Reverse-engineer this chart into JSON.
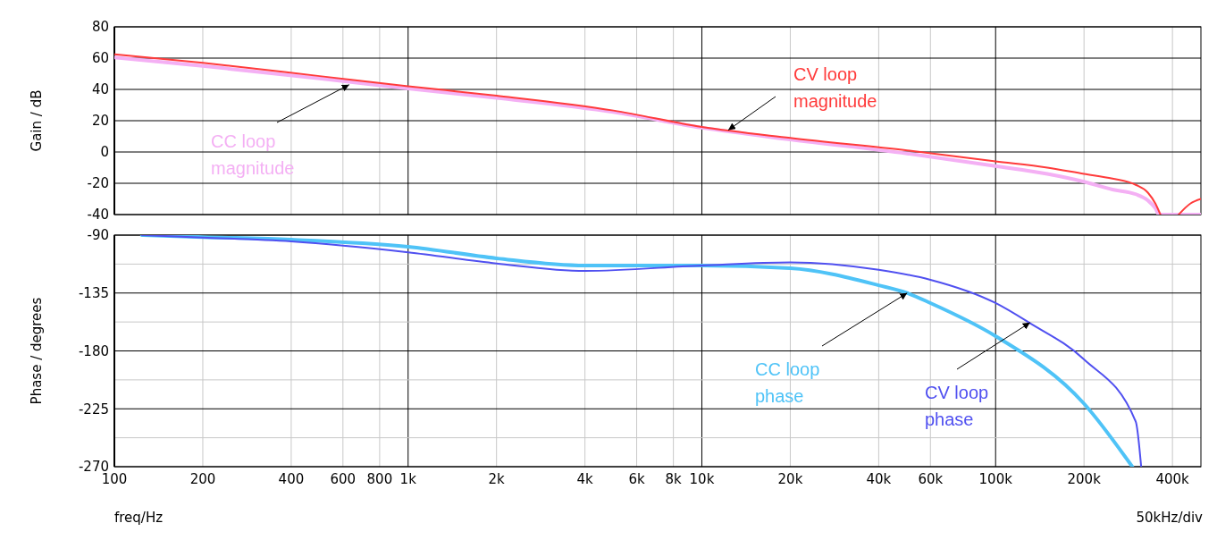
{
  "chart_data": [
    {
      "type": "line",
      "ylabel": "Gain / dB",
      "log": "x",
      "xlim": [
        100,
        500000
      ],
      "ylim": [
        -40,
        80
      ],
      "grid": true,
      "tick_labels": "y",
      "xticks": [
        {
          "value": 200,
          "label": null
        },
        {
          "value": 400,
          "label": null
        },
        {
          "value": 600,
          "label": null
        },
        {
          "value": 800,
          "label": null
        },
        {
          "value": 1000,
          "label": null
        },
        {
          "value": 2000,
          "label": null
        },
        {
          "value": 4000,
          "label": null
        },
        {
          "value": 6000,
          "label": null
        },
        {
          "value": 8000,
          "label": null
        },
        {
          "value": 10000,
          "label": null
        },
        {
          "value": 20000,
          "label": null
        },
        {
          "value": 40000,
          "label": null
        },
        {
          "value": 60000,
          "label": null
        },
        {
          "value": 100000,
          "label": null
        },
        {
          "value": 200000,
          "label": null
        },
        {
          "value": 400000,
          "label": null
        }
      ],
      "yticks": [
        -40,
        -20,
        0,
        20,
        40,
        60,
        80
      ],
      "series": [
        {
          "color": "#f4b0f4",
          "x": [
            100,
            200,
            500,
            1000,
            2000,
            5000,
            10000,
            20000,
            50000,
            100000,
            150000,
            200000,
            250000,
            300000,
            330000,
            350000,
            360000,
            500000
          ],
          "values": [
            60.5,
            55,
            47,
            40.5,
            34.5,
            25.5,
            15.5,
            8,
            -1,
            -9,
            -14,
            -19,
            -24,
            -27,
            -31,
            -36,
            -40,
            -40
          ]
        },
        {
          "color": "#ff3b3b",
          "x": [
            100,
            200,
            500,
            1000,
            2000,
            5000,
            10000,
            20000,
            50000,
            100000,
            150000,
            200000,
            250000,
            300000,
            330000,
            350000,
            364000,
            390000,
            420000,
            460000,
            500000
          ],
          "values": [
            62.5,
            57,
            48.5,
            42,
            36,
            26.5,
            16,
            9,
            1,
            -6,
            -10,
            -14,
            -17,
            -21,
            -26,
            -33,
            -40,
            null,
            -40,
            -33,
            -30
          ]
        }
      ],
      "annotations": [
        {
          "text": "CC loop magnitude",
          "x": 630,
          "y": 43
        },
        {
          "text": "CV loop magnitude",
          "x": 12300,
          "y": 14
        }
      ]
    },
    {
      "type": "line",
      "ylabel": "Phase / degrees",
      "xlabel": "freq/Hz",
      "log": "x",
      "xlim": [
        100,
        500000
      ],
      "ylim": [
        -270,
        -90
      ],
      "grid": true,
      "xticks": [
        100,
        200,
        400,
        600,
        800,
        {
          "value": 1000,
          "label": "1k"
        },
        {
          "value": 2000,
          "label": "2k"
        },
        {
          "value": 4000,
          "label": "4k"
        },
        {
          "value": 6000,
          "label": "6k"
        },
        {
          "value": 8000,
          "label": "8k"
        },
        {
          "value": 10000,
          "label": "10k"
        },
        {
          "value": 20000,
          "label": "20k"
        },
        {
          "value": 40000,
          "label": "40k"
        },
        {
          "value": 60000,
          "label": "60k"
        },
        {
          "value": 100000,
          "label": "100k"
        },
        {
          "value": 200000,
          "label": "200k"
        },
        {
          "value": 400000,
          "label": "400k"
        }
      ],
      "yticks": [
        -270,
        {
          "value": -247.5,
          "label": null
        },
        -225,
        {
          "value": -202.5,
          "label": null
        },
        -180,
        {
          "value": -157.5,
          "label": null
        },
        -135,
        {
          "value": -112.5,
          "label": null
        },
        -90
      ],
      "series": [
        {
          "color": "#4fc3f7",
          "x": [
            124,
            200,
            400,
            1000,
            2000,
            4000,
            10000,
            20000,
            40000,
            50000,
            60000,
            100000,
            200000,
            292000
          ],
          "values": [
            -90,
            -91.5,
            -93.5,
            -99,
            -108,
            -113.6,
            -113.6,
            -115.7,
            -129,
            -135,
            -142.8,
            -168.5,
            -221,
            -270
          ]
        },
        {
          "color": "#5050f0",
          "x": [
            124,
            200,
            400,
            1000,
            2000,
            4000,
            10000,
            20000,
            40000,
            60000,
            100000,
            130000,
            200000,
            300000,
            313000
          ],
          "values": [
            -90,
            -91.9,
            -94.9,
            -103.4,
            -112,
            -117.8,
            -113.6,
            -111.2,
            -117,
            -124.7,
            -142.8,
            -158,
            -186.6,
            -235,
            -270
          ]
        }
      ],
      "annotations": [
        {
          "text": "CC loop phase",
          "x": 50000,
          "y": -135
        },
        {
          "text": "CV loop phase",
          "x": 131000,
          "y": -158
        },
        "50kHz/div"
      ]
    }
  ]
}
